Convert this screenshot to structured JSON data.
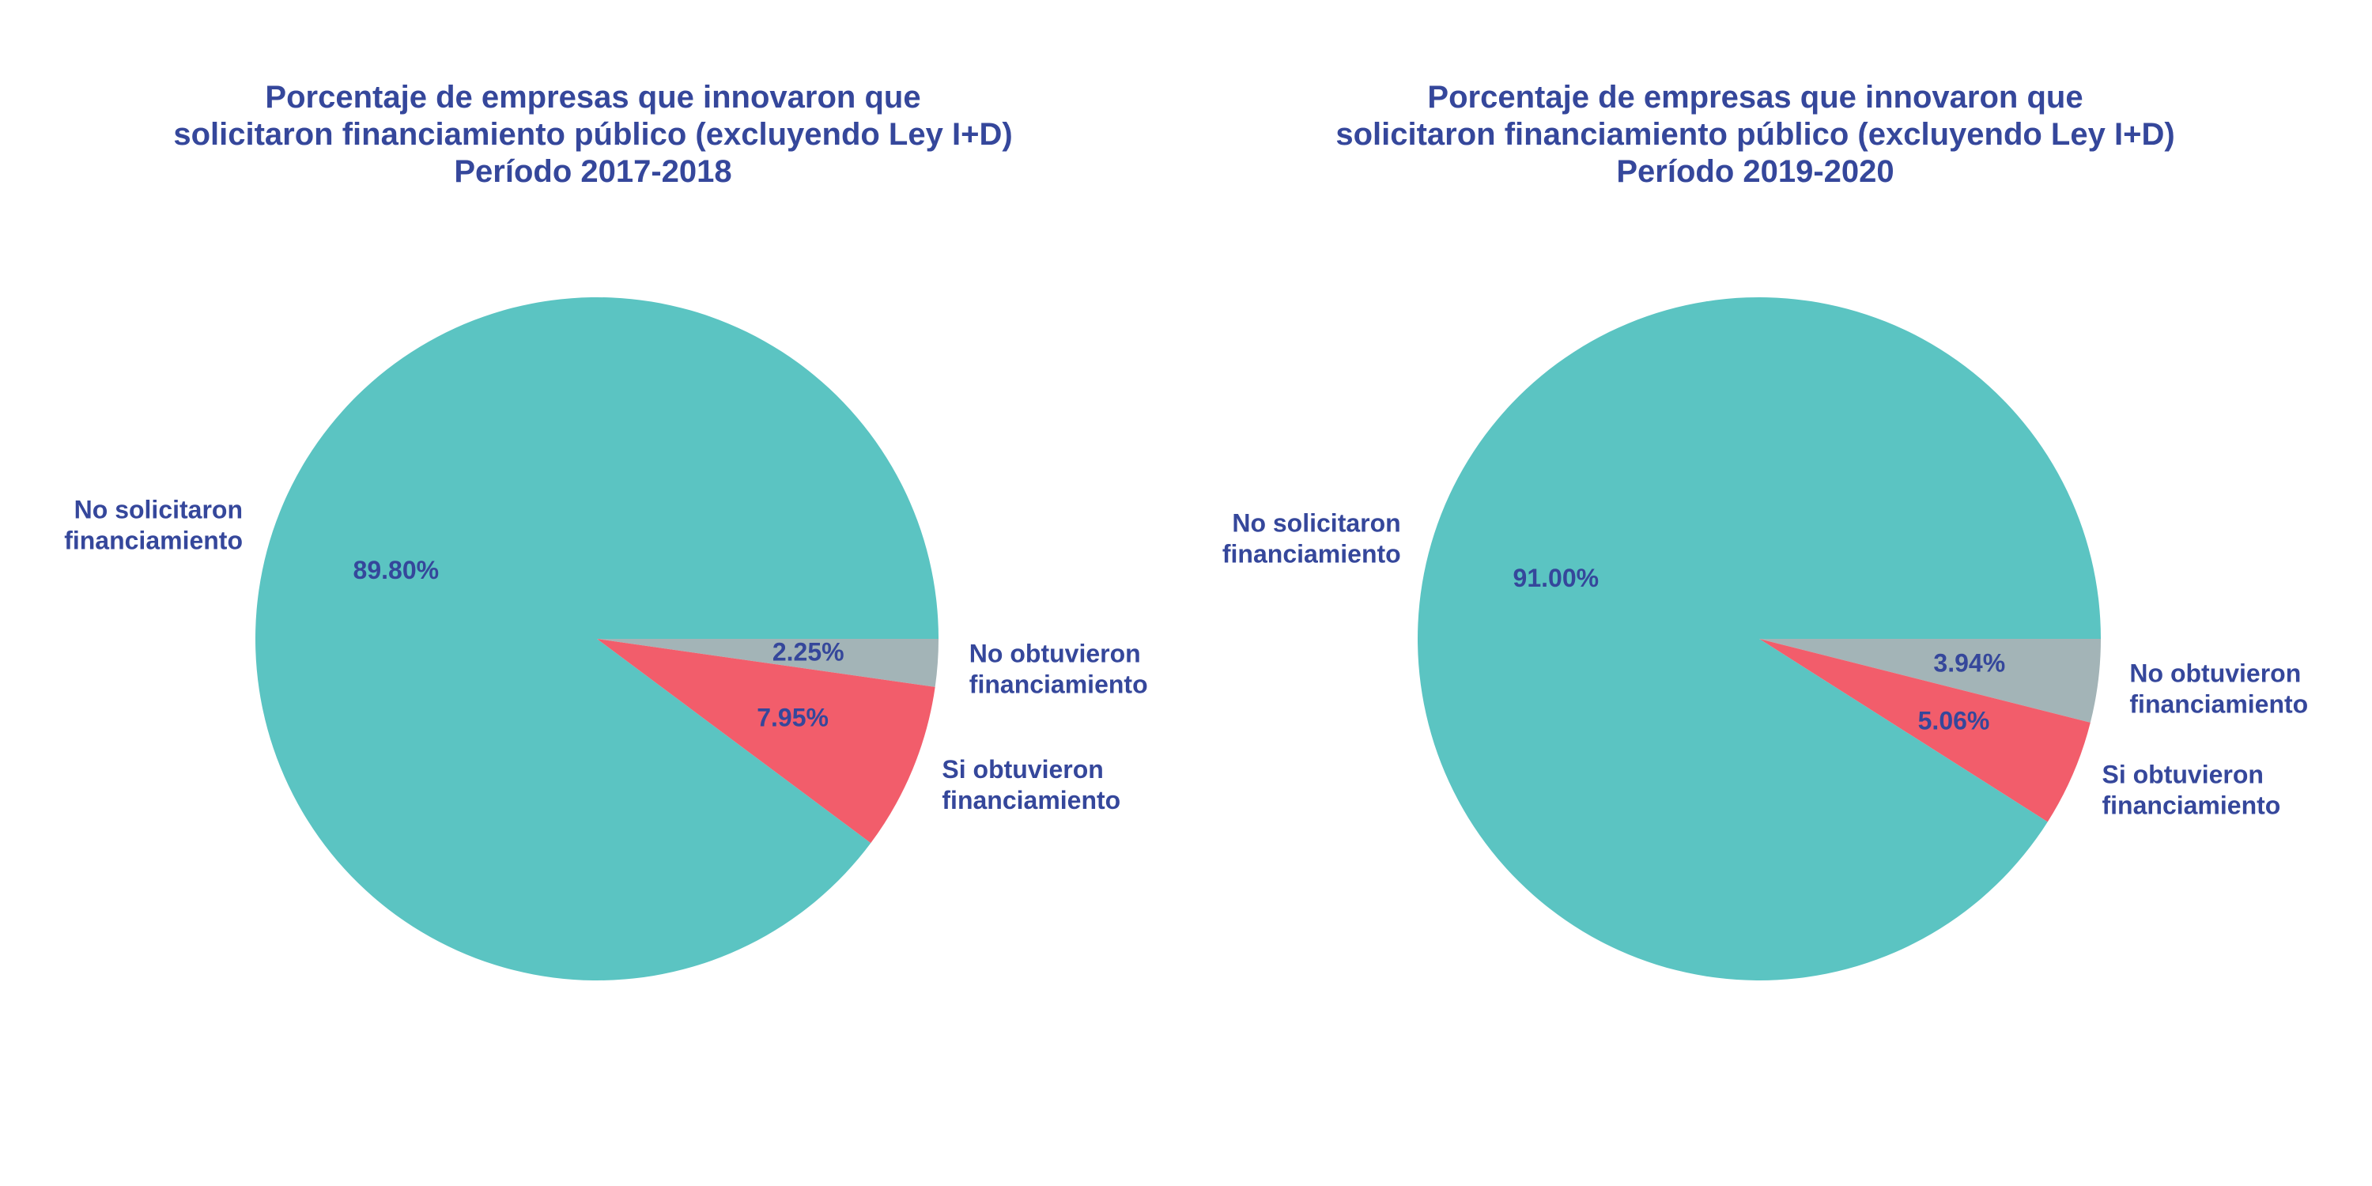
{
  "chart_data": [
    {
      "type": "pie",
      "title": [
        "Porcentaje de empresas que innovaron que",
        "solicitaron financiamiento público (excluyendo Ley I+D)",
        "Período 2017-2018"
      ],
      "slices": [
        {
          "label": [
            "No obtuvieron",
            "financiamiento"
          ],
          "value": 2.25,
          "value_label": "2.25%",
          "color": "#a3b4b7"
        },
        {
          "label": [
            "Si obtuvieron",
            "financiamiento"
          ],
          "value": 7.95,
          "value_label": "7.95%",
          "color": "#f25d6b"
        },
        {
          "label": [
            "No solicitaron",
            "financiamiento"
          ],
          "value": 89.8,
          "value_label": "89.80%",
          "color": "#5bc4c2"
        }
      ]
    },
    {
      "type": "pie",
      "title": [
        "Porcentaje de empresas que innovaron que",
        "solicitaron financiamiento público (excluyendo Ley I+D)",
        "Período 2019-2020"
      ],
      "slices": [
        {
          "label": [
            "No obtuvieron",
            "financiamiento"
          ],
          "value": 3.94,
          "value_label": "3.94%",
          "color": "#a3b4b7"
        },
        {
          "label": [
            "Si obtuvieron",
            "financiamiento"
          ],
          "value": 5.06,
          "value_label": "5.06%",
          "color": "#f25d6b"
        },
        {
          "label": [
            "No solicitaron",
            "financiamiento"
          ],
          "value": 91.0,
          "value_label": "91.00%",
          "color": "#5bc4c2"
        }
      ]
    }
  ],
  "colors": {
    "text": "#35479b"
  }
}
